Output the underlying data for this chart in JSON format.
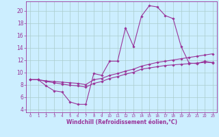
{
  "xlabel": "Windchill (Refroidissement éolien,°C)",
  "bg_color": "#cceeff",
  "grid_color": "#aacccc",
  "line_color": "#993399",
  "xlim": [
    -0.5,
    23.5
  ],
  "ylim": [
    3.5,
    21.5
  ],
  "xticks": [
    0,
    1,
    2,
    3,
    4,
    5,
    6,
    7,
    8,
    9,
    10,
    11,
    12,
    13,
    14,
    15,
    16,
    17,
    18,
    19,
    20,
    21,
    22,
    23
  ],
  "yticks": [
    4,
    6,
    8,
    10,
    12,
    14,
    16,
    18,
    20
  ],
  "line1_x": [
    0,
    1,
    2,
    3,
    4,
    5,
    6,
    7,
    8,
    9,
    10,
    11,
    12,
    13,
    14,
    15,
    16,
    17,
    18,
    19,
    20,
    21,
    22,
    23
  ],
  "line1_y": [
    8.8,
    8.8,
    7.8,
    7.0,
    6.8,
    5.2,
    4.8,
    4.8,
    9.8,
    9.5,
    11.8,
    11.8,
    17.2,
    14.2,
    19.1,
    20.8,
    20.6,
    19.2,
    18.7,
    14.2,
    11.5,
    11.4,
    11.8,
    11.5
  ],
  "line2_x": [
    0,
    1,
    2,
    3,
    4,
    5,
    6,
    7,
    8,
    9,
    10,
    11,
    12,
    13,
    14,
    15,
    16,
    17,
    18,
    19,
    20,
    21,
    22,
    23
  ],
  "line2_y": [
    8.8,
    8.8,
    8.6,
    8.5,
    8.4,
    8.3,
    8.2,
    8.0,
    8.8,
    9.0,
    9.5,
    9.8,
    10.2,
    10.5,
    11.0,
    11.3,
    11.6,
    11.8,
    12.0,
    12.2,
    12.4,
    12.6,
    12.8,
    13.0
  ],
  "line3_x": [
    0,
    1,
    2,
    3,
    4,
    5,
    6,
    7,
    8,
    9,
    10,
    11,
    12,
    13,
    14,
    15,
    16,
    17,
    18,
    19,
    20,
    21,
    22,
    23
  ],
  "line3_y": [
    8.8,
    8.8,
    8.5,
    8.3,
    8.1,
    7.9,
    7.8,
    7.6,
    8.2,
    8.5,
    9.0,
    9.3,
    9.7,
    10.0,
    10.5,
    10.7,
    10.9,
    11.1,
    11.2,
    11.3,
    11.4,
    11.5,
    11.6,
    11.6
  ],
  "xtick_fontsize": 4.0,
  "ytick_fontsize": 5.5,
  "xlabel_fontsize": 5.5,
  "marker_size": 1.8,
  "line_width": 0.8
}
